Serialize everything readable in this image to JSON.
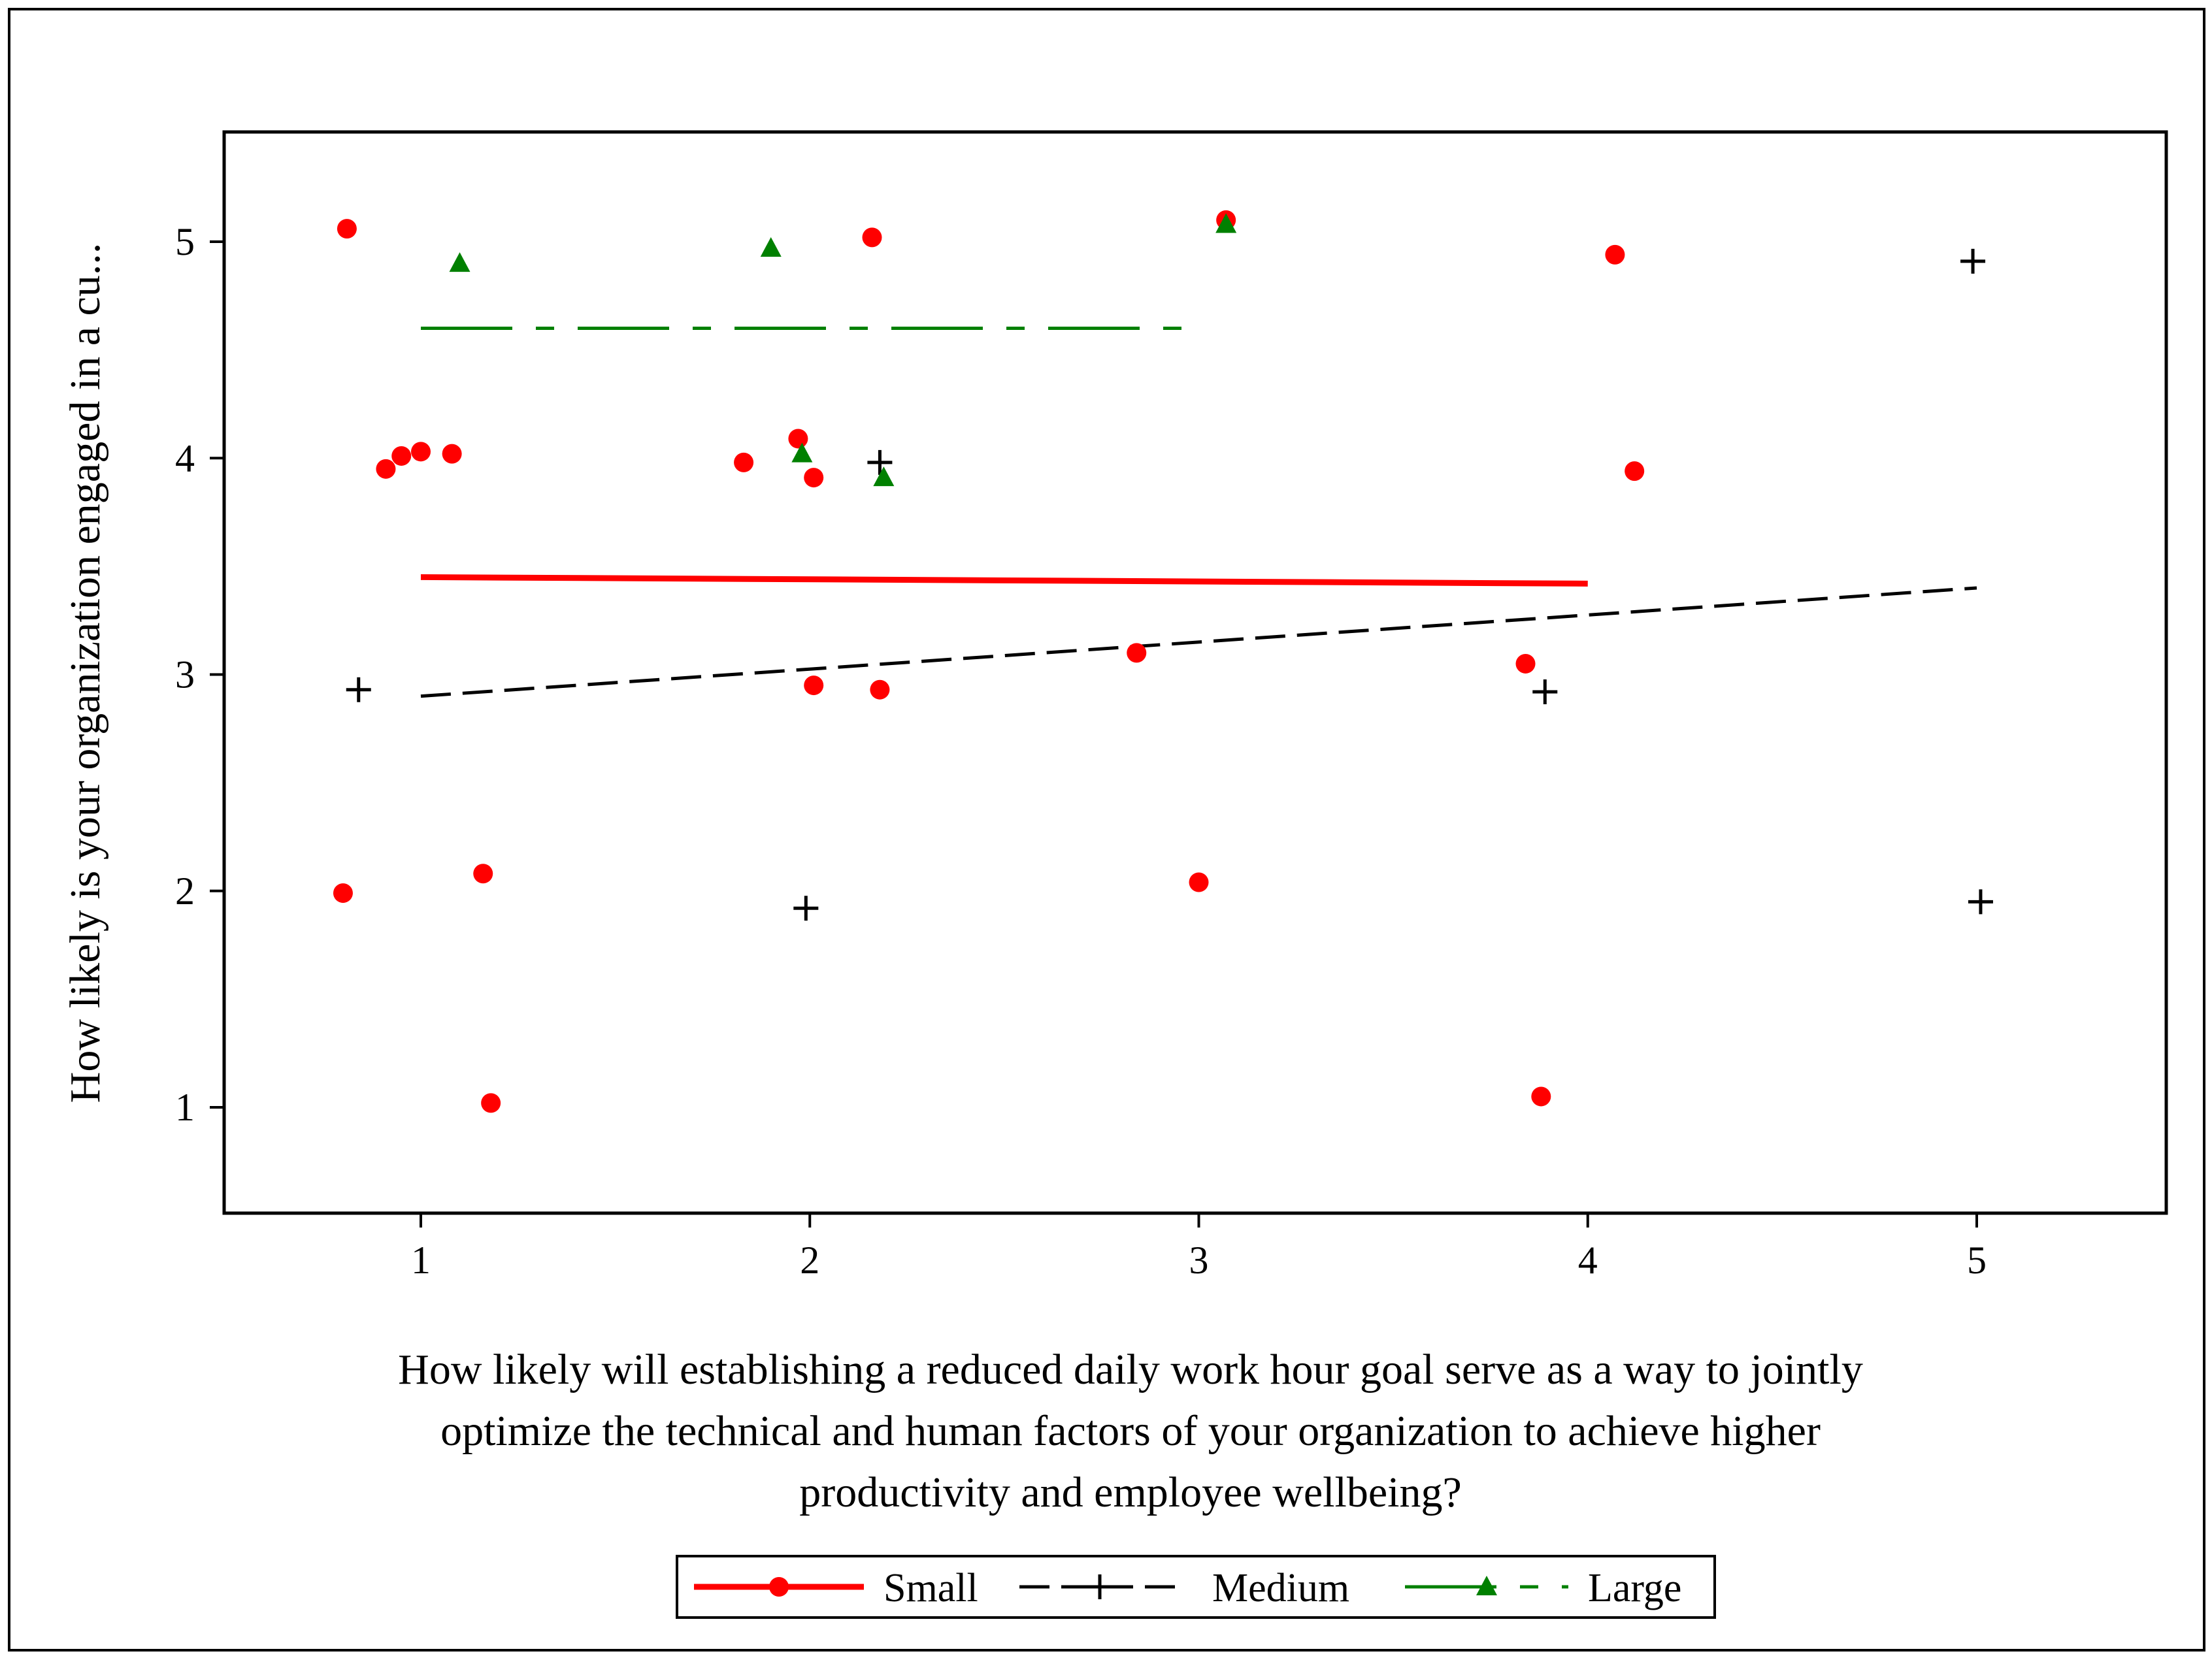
{
  "chart_data": {
    "type": "scatter",
    "title": "",
    "xlabel_lines": [
      "How likely will establishing a reduced daily work hour goal serve as a way to jointly",
      "optimize the technical and human factors of your organization to achieve higher",
      "productivity and employee wellbeing?"
    ],
    "ylabel": "How likely is your organization engaged in a cu...",
    "xlim": [
      0.5,
      5.5
    ],
    "ylim": [
      0.5,
      5.5
    ],
    "x_ticks": [
      1,
      2,
      3,
      4,
      5
    ],
    "y_ticks": [
      1,
      2,
      3,
      4,
      5
    ],
    "grid": false,
    "legend_position": "bottom",
    "series": [
      {
        "name": "Small",
        "marker": "circle",
        "color": "#ff0000",
        "line_style": "solid",
        "points": [
          [
            0.81,
            5.06
          ],
          [
            2.16,
            5.02
          ],
          [
            3.07,
            5.1
          ],
          [
            4.07,
            4.94
          ],
          [
            0.91,
            3.95
          ],
          [
            0.95,
            4.01
          ],
          [
            1.0,
            4.03
          ],
          [
            1.08,
            4.02
          ],
          [
            1.83,
            3.98
          ],
          [
            1.97,
            4.09
          ],
          [
            2.01,
            3.91
          ],
          [
            4.12,
            3.94
          ],
          [
            2.01,
            2.95
          ],
          [
            2.18,
            2.93
          ],
          [
            2.84,
            3.1
          ],
          [
            3.84,
            3.05
          ],
          [
            0.8,
            1.99
          ],
          [
            1.16,
            2.08
          ],
          [
            3.0,
            2.04
          ],
          [
            1.18,
            1.02
          ],
          [
            3.88,
            1.05
          ]
        ],
        "fit_line": [
          [
            1,
            3.45
          ],
          [
            4,
            3.42
          ]
        ]
      },
      {
        "name": "Medium",
        "marker": "plus",
        "color": "#000000",
        "line_style": "dashed",
        "points": [
          [
            0.84,
            2.93
          ],
          [
            2.18,
            3.98
          ],
          [
            1.99,
            1.92
          ],
          [
            3.89,
            2.92
          ],
          [
            4.99,
            4.91
          ],
          [
            5.01,
            1.95
          ]
        ],
        "fit_line": [
          [
            1,
            2.9
          ],
          [
            5,
            3.4
          ]
        ]
      },
      {
        "name": "Large",
        "marker": "triangle",
        "color": "#008000",
        "line_style": "long-dash-dot",
        "points": [
          [
            1.1,
            4.9
          ],
          [
            1.9,
            4.97
          ],
          [
            3.07,
            5.08
          ],
          [
            1.98,
            4.02
          ],
          [
            2.19,
            3.91
          ]
        ],
        "fit_line": [
          [
            1,
            4.6
          ],
          [
            3,
            4.6
          ]
        ]
      }
    ]
  }
}
